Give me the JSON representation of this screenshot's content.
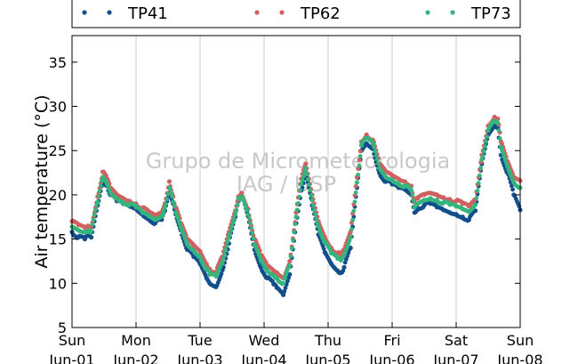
{
  "chart_data": {
    "type": "scatter",
    "ylabel": "Air temperature (°C)",
    "xlabel": "",
    "ylim": [
      5,
      38
    ],
    "yticks": [
      5,
      10,
      15,
      20,
      25,
      30,
      35
    ],
    "xlim": [
      0,
      7
    ],
    "grid": "vertical",
    "legend_position": "top",
    "watermark": [
      "Grupo de Micrometeorologia",
      "IAG / USP"
    ],
    "xticks": [
      {
        "x": 0,
        "day": "Sun",
        "date": "Jun-01"
      },
      {
        "x": 1,
        "day": "Mon",
        "date": "Jun-02"
      },
      {
        "x": 2,
        "day": "Tue",
        "date": "Jun-03"
      },
      {
        "x": 3,
        "day": "Wed",
        "date": "Jun-04"
      },
      {
        "x": 4,
        "day": "Thu",
        "date": "Jun-05"
      },
      {
        "x": 5,
        "day": "Fri",
        "date": "Jun-06"
      },
      {
        "x": 6,
        "day": "Sat",
        "date": "Jun-07"
      },
      {
        "x": 7,
        "day": "Sun",
        "date": "Jun-08"
      }
    ],
    "series": [
      {
        "name": "TP41",
        "color": "#134e8c",
        "x": [
          0,
          0.1,
          0.2,
          0.25,
          0.3,
          0.4,
          0.48,
          0.55,
          0.6,
          0.7,
          0.8,
          0.9,
          1.0,
          1.1,
          1.2,
          1.3,
          1.4,
          1.45,
          1.52,
          1.58,
          1.62,
          1.7,
          1.8,
          1.9,
          2.0,
          2.1,
          2.15,
          2.25,
          2.35,
          2.45,
          2.55,
          2.6,
          2.65,
          2.75,
          2.85,
          2.95,
          3.05,
          3.15,
          3.2,
          3.3,
          3.4,
          3.5,
          3.58,
          3.65,
          3.75,
          3.85,
          3.95,
          4.05,
          4.15,
          4.2,
          4.25,
          4.35,
          4.45,
          4.52,
          4.6,
          4.7,
          4.8,
          4.9,
          5.0,
          5.1,
          5.2,
          5.3,
          5.35,
          5.4,
          5.5,
          5.6,
          5.7,
          5.8,
          5.9,
          6.0,
          6.1,
          6.2,
          6.3,
          6.4,
          6.5,
          6.6,
          6.65,
          6.7,
          6.8,
          6.9,
          7.0
        ],
        "y": [
          15.8,
          15.2,
          15.0,
          15.4,
          15.2,
          18.8,
          21.6,
          21.0,
          20.0,
          19.3,
          19.0,
          18.7,
          18.4,
          17.8,
          17.3,
          16.8,
          17.2,
          18.2,
          20.2,
          19.0,
          17.8,
          16.0,
          13.8,
          13.0,
          12.2,
          10.6,
          10.0,
          9.6,
          11.5,
          14.5,
          17.5,
          19.3,
          20.2,
          17.6,
          13.8,
          11.8,
          10.6,
          9.9,
          9.5,
          8.7,
          11.0,
          16.8,
          20.5,
          22.5,
          18.8,
          15.5,
          13.5,
          12.2,
          11.4,
          11.2,
          11.8,
          14.0,
          20.8,
          25.0,
          25.8,
          25.2,
          22.5,
          21.5,
          21.2,
          20.8,
          20.6,
          20.0,
          18.0,
          18.5,
          18.8,
          19.0,
          18.6,
          18.3,
          18.0,
          17.8,
          17.5,
          17.2,
          18.2,
          23.5,
          26.8,
          27.8,
          27.6,
          24.5,
          22.5,
          20.0,
          18.3
        ]
      },
      {
        "name": "TP62",
        "color": "#d16060",
        "x": [
          0,
          0.1,
          0.2,
          0.25,
          0.3,
          0.4,
          0.48,
          0.55,
          0.6,
          0.7,
          0.8,
          0.9,
          1.0,
          1.1,
          1.2,
          1.3,
          1.4,
          1.45,
          1.52,
          1.58,
          1.62,
          1.7,
          1.8,
          1.9,
          2.0,
          2.1,
          2.15,
          2.25,
          2.35,
          2.45,
          2.55,
          2.6,
          2.65,
          2.75,
          2.85,
          2.95,
          3.05,
          3.15,
          3.2,
          3.3,
          3.4,
          3.5,
          3.58,
          3.65,
          3.75,
          3.85,
          3.95,
          4.05,
          4.15,
          4.2,
          4.25,
          4.35,
          4.45,
          4.52,
          4.6,
          4.7,
          4.8,
          4.9,
          5.0,
          5.1,
          5.2,
          5.3,
          5.35,
          5.4,
          5.5,
          5.6,
          5.7,
          5.8,
          5.9,
          6.0,
          6.1,
          6.2,
          6.3,
          6.4,
          6.5,
          6.6,
          6.65,
          6.7,
          6.8,
          6.9,
          7.0
        ],
        "y": [
          17.0,
          16.6,
          16.3,
          16.5,
          16.4,
          19.8,
          22.6,
          21.8,
          20.8,
          20.0,
          19.6,
          19.3,
          19.0,
          18.5,
          18.0,
          17.6,
          18.0,
          19.0,
          21.5,
          19.8,
          18.6,
          16.8,
          15.0,
          14.3,
          13.6,
          12.2,
          11.6,
          11.3,
          13.0,
          15.8,
          18.2,
          19.8,
          20.2,
          18.4,
          15.0,
          13.2,
          12.0,
          11.4,
          11.2,
          10.6,
          12.5,
          18.0,
          21.8,
          23.5,
          20.0,
          17.0,
          15.2,
          14.0,
          13.4,
          13.2,
          13.8,
          15.8,
          22.0,
          26.0,
          26.8,
          26.2,
          23.5,
          22.6,
          22.2,
          21.8,
          21.5,
          21.0,
          19.2,
          19.6,
          20.0,
          20.2,
          20.0,
          19.7,
          19.5,
          19.3,
          19.0,
          18.7,
          19.5,
          24.5,
          27.8,
          28.8,
          28.6,
          26.0,
          23.8,
          22.0,
          21.6
        ]
      },
      {
        "name": "TP73",
        "color": "#35b57d",
        "x": [
          0,
          0.1,
          0.2,
          0.25,
          0.3,
          0.4,
          0.48,
          0.55,
          0.6,
          0.7,
          0.8,
          0.9,
          1.0,
          1.1,
          1.2,
          1.3,
          1.4,
          1.45,
          1.52,
          1.58,
          1.62,
          1.7,
          1.8,
          1.9,
          2.0,
          2.1,
          2.15,
          2.25,
          2.35,
          2.45,
          2.55,
          2.6,
          2.65,
          2.75,
          2.85,
          2.95,
          3.05,
          3.15,
          3.2,
          3.3,
          3.4,
          3.5,
          3.58,
          3.65,
          3.75,
          3.85,
          3.95,
          4.05,
          4.15,
          4.2,
          4.25,
          4.35,
          4.45,
          4.52,
          4.6,
          4.7,
          4.8,
          4.9,
          5.0,
          5.1,
          5.2,
          5.3,
          5.35,
          5.4,
          5.5,
          5.6,
          5.7,
          5.8,
          5.9,
          6.0,
          6.1,
          6.2,
          6.3,
          6.4,
          6.5,
          6.6,
          6.65,
          6.7,
          6.8,
          6.9,
          7.0
        ],
        "y": [
          16.4,
          16.0,
          15.8,
          16.0,
          15.9,
          19.2,
          22.0,
          21.2,
          20.2,
          19.6,
          19.2,
          18.9,
          18.6,
          18.0,
          17.6,
          17.2,
          17.6,
          18.6,
          20.8,
          19.2,
          18.0,
          16.3,
          14.4,
          13.7,
          13.0,
          11.6,
          11.0,
          10.8,
          12.4,
          15.2,
          17.8,
          19.6,
          19.8,
          17.8,
          14.4,
          12.6,
          11.4,
          10.9,
          10.6,
          10.0,
          12.0,
          17.5,
          21.2,
          23.0,
          19.4,
          16.4,
          14.6,
          13.4,
          12.8,
          12.6,
          13.2,
          15.2,
          21.4,
          25.6,
          26.4,
          25.8,
          23.0,
          22.0,
          21.7,
          21.3,
          21.0,
          20.5,
          18.6,
          19.0,
          19.4,
          19.6,
          19.4,
          19.1,
          18.9,
          18.7,
          18.4,
          18.1,
          18.9,
          24.0,
          27.3,
          28.3,
          28.1,
          25.4,
          23.2,
          21.4,
          20.8
        ]
      }
    ]
  }
}
